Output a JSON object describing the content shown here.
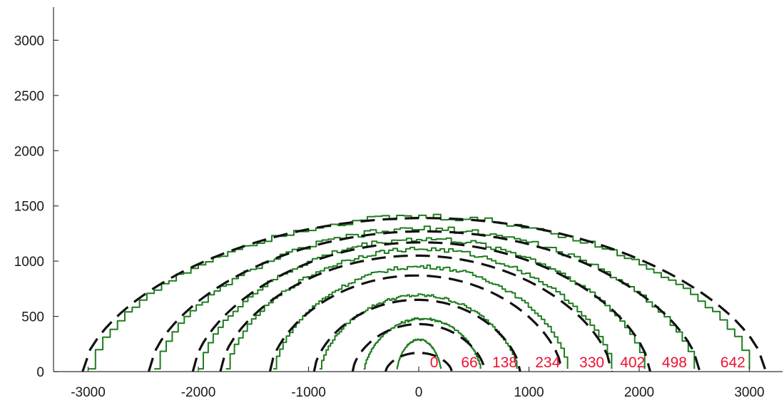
{
  "chart_data": {
    "type": "line",
    "title": "",
    "xlabel": "",
    "ylabel": "",
    "xlim": [
      -3200,
      3200
    ],
    "ylim": [
      0,
      3300
    ],
    "xticks": [
      -3000,
      -2000,
      -1000,
      0,
      1000,
      2000,
      3000
    ],
    "yticks": [
      0,
      500,
      1000,
      1500,
      2000,
      2500,
      3000
    ],
    "xtick_labels": [
      "-3000",
      "-2000",
      "-1000",
      "0",
      "1000",
      "2000",
      "3000"
    ],
    "ytick_labels": [
      "0",
      "500",
      "1000",
      "1500",
      "2000",
      "2500",
      "3000"
    ],
    "grid": false,
    "legend": false,
    "colors": {
      "fit": "#111111",
      "front": "#1e7d1e",
      "label": "#ee1133"
    },
    "series": [
      {
        "label": "0",
        "label_x": 140,
        "fit": {
          "left": -300,
          "right": 300,
          "peak": 170
        },
        "front": {
          "left": -200,
          "right": 200,
          "peak": 290
        }
      },
      {
        "label": "66",
        "label_x": 460,
        "fit": {
          "left": -600,
          "right": 600,
          "peak": 430
        },
        "front": {
          "left": -500,
          "right": 560,
          "peak": 480
        }
      },
      {
        "label": "138",
        "label_x": 780,
        "fit": {
          "left": -950,
          "right": 920,
          "peak": 650
        },
        "front": {
          "left": -900,
          "right": 890,
          "peak": 690
        }
      },
      {
        "label": "234",
        "label_x": 1170,
        "fit": {
          "left": -1350,
          "right": 1300,
          "peak": 870
        },
        "front": {
          "left": -1320,
          "right": 1350,
          "peak": 950
        }
      },
      {
        "label": "330",
        "label_x": 1570,
        "fit": {
          "left": -1800,
          "right": 1750,
          "peak": 1050
        },
        "front": {
          "left": -1750,
          "right": 1750,
          "peak": 1110
        }
      },
      {
        "label": "402",
        "label_x": 1940,
        "fit": {
          "left": -2050,
          "right": 2100,
          "peak": 1170
        },
        "front": {
          "left": -2000,
          "right": 2050,
          "peak": 1200
        }
      },
      {
        "label": "498",
        "label_x": 2320,
        "fit": {
          "left": -2450,
          "right": 2550,
          "peak": 1270
        },
        "front": {
          "left": -2400,
          "right": 2500,
          "peak": 1290
        }
      },
      {
        "label": "642",
        "label_x": 2850,
        "fit": {
          "left": -3050,
          "right": 3150,
          "peak": 1390
        },
        "front": {
          "left": -3000,
          "right": 3000,
          "peak": 1400
        }
      }
    ]
  }
}
